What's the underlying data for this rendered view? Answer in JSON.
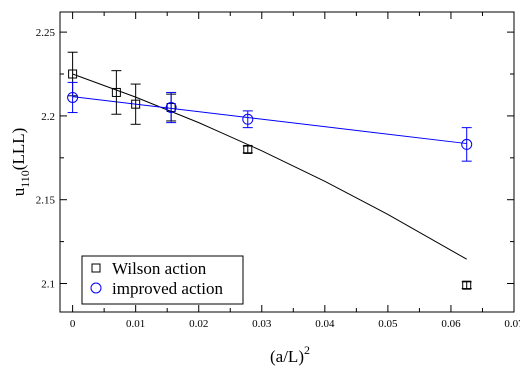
{
  "chart_data": {
    "type": "scatter",
    "title": "",
    "xlabel": {
      "base": "(a/L)",
      "sup": "2"
    },
    "ylabel": {
      "base": "u",
      "sub": "110",
      "rest": "(LLL)"
    },
    "xlim": [
      -0.002,
      0.07
    ],
    "ylim": [
      2.083,
      2.262
    ],
    "xticks": [
      0,
      0.01,
      0.02,
      0.03,
      0.04,
      0.05,
      0.06,
      0.07
    ],
    "xtick_labels": [
      "0",
      "0.01",
      "0.02",
      "0.03",
      "0.04",
      "0.05",
      "0.06",
      "0.07"
    ],
    "yticks": [
      2.1,
      2.15,
      2.2,
      2.25
    ],
    "ytick_labels": [
      "2.1",
      "2.15",
      "2.2",
      "2.25"
    ],
    "grid": false,
    "legend_position": "bottom-left",
    "series": [
      {
        "name": "Wilson action",
        "marker": "square",
        "color": "#000000",
        "points": [
          {
            "x": 0.0,
            "y": 2.225,
            "err": 0.013
          },
          {
            "x": 0.00694,
            "y": 2.214,
            "err": 0.013
          },
          {
            "x": 0.01,
            "y": 2.207,
            "err": 0.012
          },
          {
            "x": 0.015625,
            "y": 2.205,
            "err": 0.008
          },
          {
            "x": 0.02778,
            "y": 2.18,
            "err": 0.002
          },
          {
            "x": 0.0625,
            "y": 2.099,
            "err": 0.002
          }
        ],
        "fit": [
          [
            0.0,
            2.225
          ],
          [
            0.01,
            2.2112
          ],
          [
            0.02,
            2.196
          ],
          [
            0.03,
            2.1792
          ],
          [
            0.04,
            2.161
          ],
          [
            0.05,
            2.1412
          ],
          [
            0.0625,
            2.1145
          ]
        ]
      },
      {
        "name": "improved action",
        "marker": "circle",
        "color": "#0000ff",
        "points": [
          {
            "x": 0.0,
            "y": 2.211,
            "err": 0.009
          },
          {
            "x": 0.015625,
            "y": 2.205,
            "err": 0.009
          },
          {
            "x": 0.02778,
            "y": 2.198,
            "err": 0.005
          },
          {
            "x": 0.0625,
            "y": 2.183,
            "err": 0.01
          }
        ],
        "fit": [
          [
            0.0,
            2.2115
          ],
          [
            0.0625,
            2.1835
          ]
        ]
      }
    ]
  }
}
